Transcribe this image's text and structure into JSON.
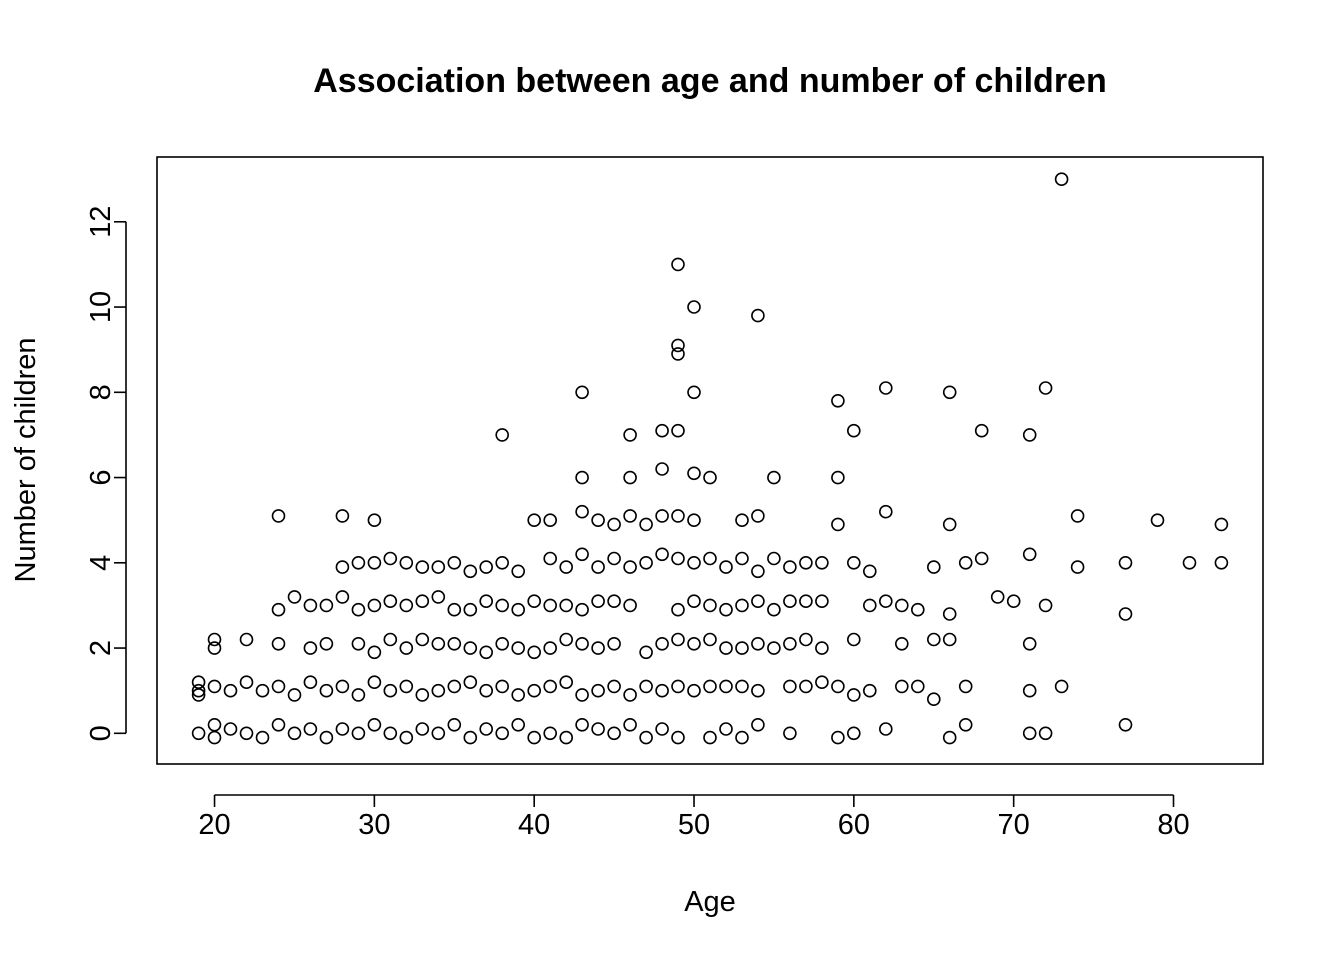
{
  "chart_data": {
    "type": "scatter",
    "title": "Association between age and number of children",
    "xlabel": "Age",
    "ylabel": "Number of children",
    "xlim": [
      16.4,
      85.6
    ],
    "ylim": [
      -0.72,
      13.52
    ],
    "xticks": [
      20,
      30,
      40,
      50,
      60,
      70,
      80
    ],
    "yticks": [
      0,
      2,
      4,
      6,
      8,
      10,
      12
    ],
    "grid": false,
    "legend": "none",
    "marker": "open-circle",
    "point_color": "#000000",
    "note": "Children counts are jittered vertically in the original; values are read from the plot.",
    "points": [
      [
        19,
        1.2
      ],
      [
        19,
        1.0
      ],
      [
        19,
        0.9
      ],
      [
        20,
        1.1
      ],
      [
        21,
        1.0
      ],
      [
        22,
        1.2
      ],
      [
        23,
        1.0
      ],
      [
        24,
        1.1
      ],
      [
        25,
        0.9
      ],
      [
        26,
        1.2
      ],
      [
        27,
        1.0
      ],
      [
        28,
        1.1
      ],
      [
        29,
        0.9
      ],
      [
        30,
        1.2
      ],
      [
        31,
        1.0
      ],
      [
        32,
        1.1
      ],
      [
        33,
        0.9
      ],
      [
        34,
        1.0
      ],
      [
        35,
        1.1
      ],
      [
        36,
        1.2
      ],
      [
        37,
        1.0
      ],
      [
        38,
        1.1
      ],
      [
        39,
        0.9
      ],
      [
        40,
        1.0
      ],
      [
        41,
        1.1
      ],
      [
        42,
        1.2
      ],
      [
        43,
        0.9
      ],
      [
        44,
        1.0
      ],
      [
        45,
        1.1
      ],
      [
        46,
        0.9
      ],
      [
        47,
        1.1
      ],
      [
        48,
        1.0
      ],
      [
        49,
        1.1
      ],
      [
        50,
        1.0
      ],
      [
        51,
        1.1
      ],
      [
        52,
        1.1
      ],
      [
        53,
        1.1
      ],
      [
        54,
        1.0
      ],
      [
        56,
        1.1
      ],
      [
        57,
        1.1
      ],
      [
        58,
        1.2
      ],
      [
        59,
        1.1
      ],
      [
        60,
        0.9
      ],
      [
        61,
        1.0
      ],
      [
        63,
        1.1
      ],
      [
        64,
        1.1
      ],
      [
        65,
        0.8
      ],
      [
        67,
        1.1
      ],
      [
        71,
        1.0
      ],
      [
        73,
        1.1
      ],
      [
        19,
        0.0
      ],
      [
        20,
        0.2
      ],
      [
        20,
        -0.1
      ],
      [
        21,
        0.1
      ],
      [
        22,
        0.0
      ],
      [
        23,
        -0.1
      ],
      [
        24,
        0.2
      ],
      [
        25,
        0.0
      ],
      [
        26,
        0.1
      ],
      [
        27,
        -0.1
      ],
      [
        28,
        0.1
      ],
      [
        29,
        0.0
      ],
      [
        30,
        0.2
      ],
      [
        31,
        0.0
      ],
      [
        32,
        -0.1
      ],
      [
        33,
        0.1
      ],
      [
        34,
        0.0
      ],
      [
        35,
        0.2
      ],
      [
        36,
        -0.1
      ],
      [
        37,
        0.1
      ],
      [
        38,
        0.0
      ],
      [
        39,
        0.2
      ],
      [
        40,
        -0.1
      ],
      [
        41,
        0.0
      ],
      [
        42,
        -0.1
      ],
      [
        43,
        0.2
      ],
      [
        44,
        0.1
      ],
      [
        45,
        0.0
      ],
      [
        46,
        0.2
      ],
      [
        47,
        -0.1
      ],
      [
        48,
        0.1
      ],
      [
        49,
        -0.1
      ],
      [
        51,
        -0.1
      ],
      [
        52,
        0.1
      ],
      [
        53,
        -0.1
      ],
      [
        54,
        0.2
      ],
      [
        56,
        0.0
      ],
      [
        59,
        -0.1
      ],
      [
        60,
        0.0
      ],
      [
        62,
        0.1
      ],
      [
        66,
        -0.1
      ],
      [
        67,
        0.2
      ],
      [
        71,
        0.0
      ],
      [
        72,
        0.0
      ],
      [
        77,
        0.2
      ],
      [
        20,
        2.2
      ],
      [
        20,
        2.0
      ],
      [
        22,
        2.2
      ],
      [
        24,
        2.1
      ],
      [
        26,
        2.0
      ],
      [
        27,
        2.1
      ],
      [
        29,
        2.1
      ],
      [
        30,
        1.9
      ],
      [
        31,
        2.2
      ],
      [
        32,
        2.0
      ],
      [
        33,
        2.2
      ],
      [
        34,
        2.1
      ],
      [
        35,
        2.1
      ],
      [
        36,
        2.0
      ],
      [
        37,
        1.9
      ],
      [
        38,
        2.1
      ],
      [
        39,
        2.0
      ],
      [
        40,
        1.9
      ],
      [
        41,
        2.0
      ],
      [
        42,
        2.2
      ],
      [
        43,
        2.1
      ],
      [
        44,
        2.0
      ],
      [
        45,
        2.1
      ],
      [
        47,
        1.9
      ],
      [
        48,
        2.1
      ],
      [
        49,
        2.2
      ],
      [
        50,
        2.1
      ],
      [
        51,
        2.2
      ],
      [
        52,
        2.0
      ],
      [
        53,
        2.0
      ],
      [
        54,
        2.1
      ],
      [
        55,
        2.0
      ],
      [
        56,
        2.1
      ],
      [
        57,
        2.2
      ],
      [
        58,
        2.0
      ],
      [
        60,
        2.2
      ],
      [
        63,
        2.1
      ],
      [
        65,
        2.2
      ],
      [
        66,
        2.2
      ],
      [
        71,
        2.1
      ],
      [
        24,
        2.9
      ],
      [
        25,
        3.2
      ],
      [
        26,
        3.0
      ],
      [
        27,
        3.0
      ],
      [
        28,
        3.2
      ],
      [
        29,
        2.9
      ],
      [
        30,
        3.0
      ],
      [
        31,
        3.1
      ],
      [
        32,
        3.0
      ],
      [
        33,
        3.1
      ],
      [
        34,
        3.2
      ],
      [
        35,
        2.9
      ],
      [
        36,
        2.9
      ],
      [
        37,
        3.1
      ],
      [
        38,
        3.0
      ],
      [
        39,
        2.9
      ],
      [
        40,
        3.1
      ],
      [
        41,
        3.0
      ],
      [
        42,
        3.0
      ],
      [
        43,
        2.9
      ],
      [
        44,
        3.1
      ],
      [
        45,
        3.1
      ],
      [
        46,
        3.0
      ],
      [
        49,
        2.9
      ],
      [
        50,
        3.1
      ],
      [
        51,
        3.0
      ],
      [
        52,
        2.9
      ],
      [
        53,
        3.0
      ],
      [
        54,
        3.1
      ],
      [
        55,
        2.9
      ],
      [
        56,
        3.1
      ],
      [
        57,
        3.1
      ],
      [
        58,
        3.1
      ],
      [
        61,
        3.0
      ],
      [
        62,
        3.1
      ],
      [
        63,
        3.0
      ],
      [
        64,
        2.9
      ],
      [
        66,
        2.8
      ],
      [
        69,
        3.2
      ],
      [
        70,
        3.1
      ],
      [
        72,
        3.0
      ],
      [
        77,
        2.8
      ],
      [
        28,
        3.9
      ],
      [
        29,
        4.0
      ],
      [
        30,
        4.0
      ],
      [
        31,
        4.1
      ],
      [
        32,
        4.0
      ],
      [
        33,
        3.9
      ],
      [
        34,
        3.9
      ],
      [
        35,
        4.0
      ],
      [
        36,
        3.8
      ],
      [
        37,
        3.9
      ],
      [
        38,
        4.0
      ],
      [
        39,
        3.8
      ],
      [
        41,
        4.1
      ],
      [
        42,
        3.9
      ],
      [
        43,
        4.2
      ],
      [
        44,
        3.9
      ],
      [
        45,
        4.1
      ],
      [
        46,
        3.9
      ],
      [
        47,
        4.0
      ],
      [
        48,
        4.2
      ],
      [
        49,
        4.1
      ],
      [
        50,
        4.0
      ],
      [
        51,
        4.1
      ],
      [
        52,
        3.9
      ],
      [
        53,
        4.1
      ],
      [
        54,
        3.8
      ],
      [
        55,
        4.1
      ],
      [
        56,
        3.9
      ],
      [
        57,
        4.0
      ],
      [
        58,
        4.0
      ],
      [
        60,
        4.0
      ],
      [
        61,
        3.8
      ],
      [
        65,
        3.9
      ],
      [
        67,
        4.0
      ],
      [
        68,
        4.1
      ],
      [
        71,
        4.2
      ],
      [
        74,
        3.9
      ],
      [
        77,
        4.0
      ],
      [
        81,
        4.0
      ],
      [
        83,
        4.0
      ],
      [
        24,
        5.1
      ],
      [
        28,
        5.1
      ],
      [
        30,
        5.0
      ],
      [
        40,
        5.0
      ],
      [
        41,
        5.0
      ],
      [
        43,
        5.2
      ],
      [
        44,
        5.0
      ],
      [
        45,
        4.9
      ],
      [
        46,
        5.1
      ],
      [
        47,
        4.9
      ],
      [
        48,
        5.1
      ],
      [
        49,
        5.1
      ],
      [
        50,
        5.0
      ],
      [
        53,
        5.0
      ],
      [
        54,
        5.1
      ],
      [
        59,
        4.9
      ],
      [
        62,
        5.2
      ],
      [
        66,
        4.9
      ],
      [
        74,
        5.1
      ],
      [
        79,
        5.0
      ],
      [
        83,
        4.9
      ],
      [
        43,
        6.0
      ],
      [
        46,
        6.0
      ],
      [
        48,
        6.2
      ],
      [
        50,
        6.1
      ],
      [
        51,
        6.0
      ],
      [
        55,
        6.0
      ],
      [
        59,
        6.0
      ],
      [
        38,
        7.0
      ],
      [
        46,
        7.0
      ],
      [
        48,
        7.1
      ],
      [
        49,
        7.1
      ],
      [
        60,
        7.1
      ],
      [
        68,
        7.1
      ],
      [
        71,
        7.0
      ],
      [
        43,
        8.0
      ],
      [
        50,
        8.0
      ],
      [
        59,
        7.8
      ],
      [
        62,
        8.1
      ],
      [
        66,
        8.0
      ],
      [
        72,
        8.1
      ],
      [
        49,
        8.9
      ],
      [
        49,
        9.1
      ],
      [
        54,
        9.8
      ],
      [
        50,
        10.0
      ],
      [
        49,
        11.0
      ],
      [
        73,
        13.0
      ]
    ]
  }
}
